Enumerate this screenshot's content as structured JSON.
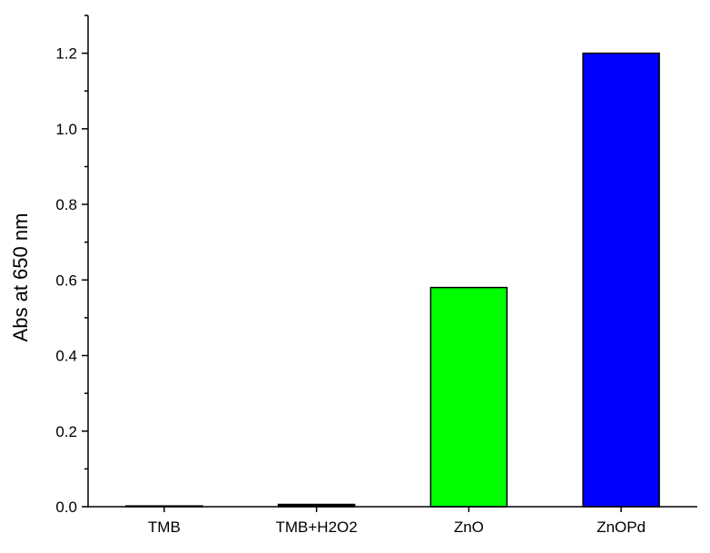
{
  "chart_data": {
    "type": "bar",
    "categories": [
      "TMB",
      "TMB+H2O2",
      "ZnO",
      "ZnOPd"
    ],
    "values": [
      0.002,
      0.006,
      0.58,
      1.2
    ],
    "colors": [
      "#000000",
      "#000000",
      "#00ff00",
      "#0000ff"
    ],
    "title": "",
    "xlabel": "",
    "ylabel": "Abs at 650 nm",
    "ylim": [
      0,
      1.3
    ],
    "yticks": [
      "0.0",
      "0.2",
      "0.4",
      "0.6",
      "0.8",
      "1.0",
      "1.2"
    ],
    "grid": false
  }
}
